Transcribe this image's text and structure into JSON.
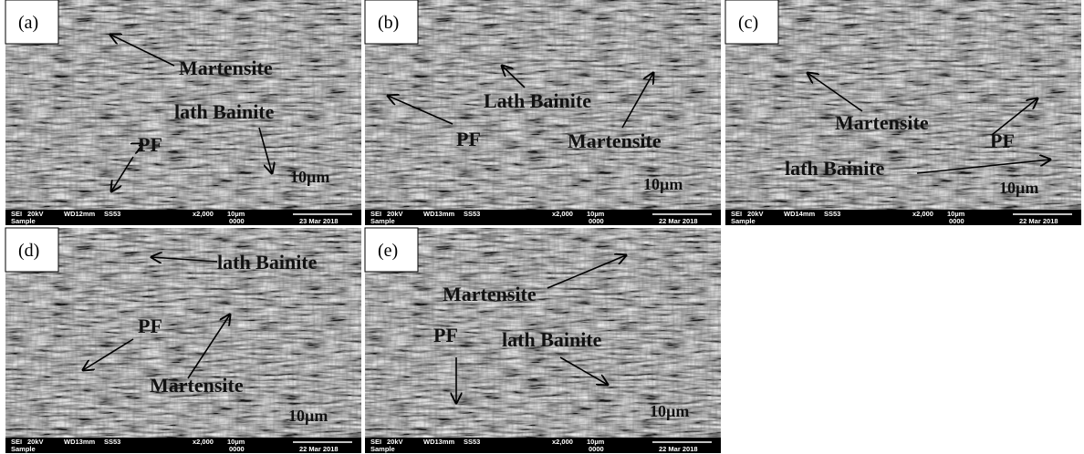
{
  "panels": [
    {
      "label": "(a)",
      "annotations": [
        "Martensite",
        "lath Bainite",
        "PF"
      ],
      "scale_label": "10µm",
      "footer": {
        "mode": "SEI",
        "voltage": "20kV",
        "wd": "WD12mm",
        "spot": "SS53",
        "mag": "x2,000",
        "scale": "10µm",
        "code": "0000",
        "date": "23 Mar 2018",
        "sample": "Sample"
      }
    },
    {
      "label": "(b)",
      "annotations": [
        "Lath Bainite",
        "PF",
        "Martensite"
      ],
      "scale_label": "10µm",
      "footer": {
        "mode": "SEI",
        "voltage": "20kV",
        "wd": "WD13mm",
        "spot": "SS53",
        "mag": "x2,000",
        "scale": "10µm",
        "code": "0000",
        "date": "22 Mar 2018",
        "sample": "Sample"
      }
    },
    {
      "label": "(c)",
      "annotations": [
        "Martensite",
        "PF",
        "lath Bainite"
      ],
      "scale_label": "10µm",
      "footer": {
        "mode": "SEI",
        "voltage": "20kV",
        "wd": "WD14mm",
        "spot": "SS53",
        "mag": "x2,000",
        "scale": "10µm",
        "code": "0000",
        "date": "22 Mar 2018",
        "sample": "Sample"
      }
    },
    {
      "label": "(d)",
      "annotations": [
        "lath Bainite",
        "PF",
        "Martensite"
      ],
      "scale_label": "10µm",
      "footer": {
        "mode": "SEI",
        "voltage": "20kV",
        "wd": "WD13mm",
        "spot": "SS53",
        "mag": "x2,000",
        "scale": "10µm",
        "code": "0000",
        "date": "22 Mar 2018",
        "sample": "Sample"
      }
    },
    {
      "label": "(e)",
      "annotations": [
        "Martensite",
        "PF",
        "lath Bainite"
      ],
      "scale_label": "10µm",
      "footer": {
        "mode": "SEI",
        "voltage": "20kV",
        "wd": "WD13mm",
        "spot": "SS53",
        "mag": "x2,000",
        "scale": "10µm",
        "code": "0000",
        "date": "22 Mar 2018",
        "sample": "Sample"
      }
    }
  ]
}
